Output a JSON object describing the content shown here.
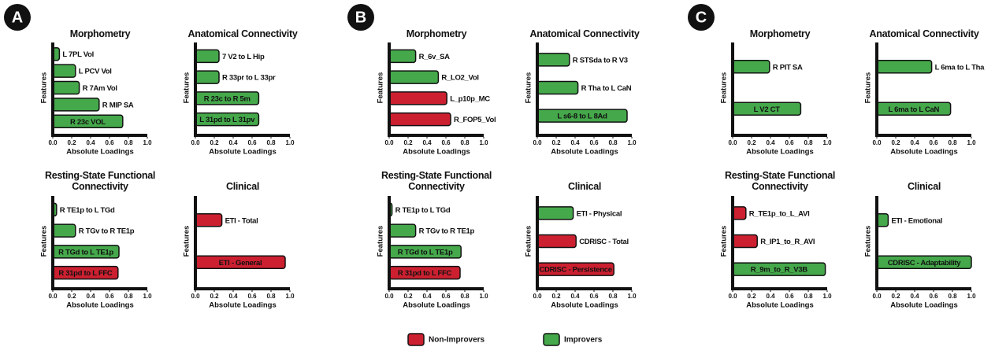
{
  "panels": [
    "A",
    "B",
    "C"
  ],
  "legend": [
    {
      "name": "Non-Improvers",
      "color": "#cc2030"
    },
    {
      "name": "Improvers",
      "color": "#45a84b"
    }
  ],
  "chart_data": [
    {
      "type": "bar",
      "title": "Morphometry",
      "xlabel": "Absolute Loadings",
      "ylabel": "Features",
      "categories": [
        "L 7PL Vol",
        "L PCV Vol",
        "R 7Am Vol",
        "R MIP SA",
        "R 23c VOL"
      ],
      "values": [
        0.07,
        0.24,
        0.28,
        0.49,
        0.74
      ],
      "colors": [
        "#45a84b",
        "#45a84b",
        "#45a84b",
        "#45a84b",
        "#45a84b"
      ],
      "xlim": [
        0,
        1
      ],
      "xticks": [
        {
          "value": 0,
          "label": "0.0"
        },
        0.2,
        0.4,
        0.6,
        0.8,
        {
          "value": 1,
          "label": "1.0"
        }
      ]
    },
    {
      "type": "bar",
      "title": "Anatomical Connectivity",
      "xlabel": "Absolute Loadings",
      "ylabel": "Features",
      "categories": [
        "7 V2 to L Hip",
        "R 33pr to L 33pr",
        "R 23c to R 5m",
        "L 31pd to L 31pv"
      ],
      "values": [
        0.25,
        0.25,
        0.67,
        0.67
      ],
      "colors": [
        "#45a84b",
        "#45a84b",
        "#45a84b",
        "#45a84b"
      ],
      "xlim": [
        0,
        1
      ],
      "xticks": [
        {
          "value": 0,
          "label": "0.0"
        },
        0.2,
        0.4,
        0.6,
        0.8,
        {
          "value": 1,
          "label": "1.0"
        }
      ]
    },
    {
      "type": "bar",
      "title": "Resting-State Functional Connectivity",
      "xlabel": "Absolute Loadings",
      "ylabel": "Features",
      "categories": [
        "R TE1p to L TGd",
        "R TGv to R TE1p",
        "R TGd to L TE1p",
        "R 31pd to L FFC"
      ],
      "values": [
        0.04,
        0.24,
        0.7,
        0.69
      ],
      "colors": [
        "#45a84b",
        "#45a84b",
        "#45a84b",
        "#cc2030"
      ],
      "xlim": [
        0,
        1
      ],
      "xticks": [
        {
          "value": 0,
          "label": "0.0"
        },
        0.2,
        0.4,
        0.6,
        0.8,
        {
          "value": 1,
          "label": "1.0"
        }
      ]
    },
    {
      "type": "bar",
      "title": "Clinical",
      "xlabel": "Absolute Loadings",
      "ylabel": "Features",
      "categories": [
        "ETI - Total",
        "ETI - General"
      ],
      "values": [
        0.28,
        0.95
      ],
      "colors": [
        "#cc2030",
        "#cc2030"
      ],
      "xlim": [
        0,
        1
      ],
      "xticks": [
        {
          "value": 0,
          "label": "0.0"
        },
        0.2,
        0.4,
        0.6,
        0.8,
        {
          "value": 1,
          "label": "1.0"
        }
      ]
    },
    {
      "type": "bar",
      "title": "Morphometry",
      "xlabel": "Absolute Loadings",
      "ylabel": "Features",
      "categories": [
        "R_6v_SA",
        "R_LO2_Vol",
        "L_p10p_MC",
        "R_FOP5_Vol"
      ],
      "values": [
        0.28,
        0.52,
        0.61,
        0.65
      ],
      "colors": [
        "#45a84b",
        "#45a84b",
        "#cc2030",
        "#cc2030"
      ],
      "xlim": [
        0,
        1
      ],
      "xticks": [
        {
          "value": 0,
          "label": "0.0"
        },
        0.2,
        0.4,
        0.6,
        0.8,
        {
          "value": 1,
          "label": "1.0"
        }
      ]
    },
    {
      "type": "bar",
      "title": "Anatomical Connectivity",
      "xlabel": "Absolute Loadings",
      "ylabel": "Features",
      "categories": [
        "R STSda to R V3",
        "R Tha to L CaN",
        "L s6-8 to L 8Ad"
      ],
      "values": [
        0.34,
        0.43,
        0.95
      ],
      "colors": [
        "#45a84b",
        "#45a84b",
        "#45a84b"
      ],
      "xlim": [
        0,
        1
      ],
      "xticks": [
        {
          "value": 0,
          "label": "0.0"
        },
        0.2,
        0.4,
        0.6,
        0.8,
        {
          "value": 1,
          "label": "1.0"
        }
      ]
    },
    {
      "type": "bar",
      "title": "Resting-State Functional Connectivity",
      "xlabel": "Absolute Loadings",
      "ylabel": "Features",
      "categories": [
        "R TE1p to L TGd",
        "R TGv to R TE1p",
        "R TGd to L TE1p",
        "R 31pd to L FFC"
      ],
      "values": [
        0.03,
        0.28,
        0.76,
        0.75
      ],
      "colors": [
        "#45a84b",
        "#45a84b",
        "#45a84b",
        "#cc2030"
      ],
      "xlim": [
        0,
        1
      ],
      "xticks": [
        {
          "value": 0,
          "label": "0.0"
        },
        0.2,
        0.4,
        0.6,
        0.8,
        {
          "value": 1,
          "label": "1.0"
        }
      ]
    },
    {
      "type": "bar",
      "title": "Clinical",
      "xlabel": "Absolute Loadings",
      "ylabel": "Features",
      "categories": [
        "ETI - Physical",
        "CDRISC - Total",
        "CDRISC - Persistence"
      ],
      "values": [
        0.38,
        0.41,
        0.81
      ],
      "colors": [
        "#45a84b",
        "#cc2030",
        "#cc2030"
      ],
      "xlim": [
        0,
        1
      ],
      "xticks": [
        {
          "value": 0,
          "label": "0.0"
        },
        0.2,
        0.4,
        0.6,
        0.8,
        {
          "value": 1,
          "label": "1.0"
        }
      ]
    },
    {
      "type": "bar",
      "title": "Morphometry",
      "xlabel": "Absolute Loadings",
      "ylabel": "Features",
      "categories": [
        "R PIT SA",
        "L V2 CT"
      ],
      "values": [
        0.39,
        0.72
      ],
      "colors": [
        "#45a84b",
        "#45a84b"
      ],
      "xlim": [
        0,
        1
      ],
      "xticks": [
        {
          "value": 0,
          "label": "0.0"
        },
        0.2,
        0.4,
        0.6,
        0.8,
        {
          "value": 1,
          "label": "1.0"
        }
      ]
    },
    {
      "type": "bar",
      "title": "Anatomical Connectivity",
      "xlabel": "Absolute Loadings",
      "ylabel": "Features",
      "categories": [
        "L 6ma to L Tha",
        "L 6ma to L CaN"
      ],
      "values": [
        0.58,
        0.78
      ],
      "colors": [
        "#45a84b",
        "#45a84b"
      ],
      "xlim": [
        0,
        1
      ],
      "xticks": [
        {
          "value": 0,
          "label": "0.0"
        },
        0.2,
        0.4,
        0.6,
        0.8,
        {
          "value": 1,
          "label": "1.0"
        }
      ]
    },
    {
      "type": "bar",
      "title": "Resting-State Functional Connectivity",
      "xlabel": "Absolute Loadings",
      "ylabel": "Features",
      "categories": [
        "R_TE1p_to_L_AVI",
        "R_IP1_to_R_AVI",
        "R_9m_to_R_V3B"
      ],
      "values": [
        0.14,
        0.26,
        0.98
      ],
      "colors": [
        "#cc2030",
        "#cc2030",
        "#45a84b"
      ],
      "xlim": [
        0,
        1
      ],
      "xticks": [
        {
          "value": 0,
          "label": "0.0"
        },
        0.2,
        0.4,
        0.6,
        0.8,
        {
          "value": 1,
          "label": "1.0"
        }
      ]
    },
    {
      "type": "bar",
      "title": "Clinical",
      "xlabel": "Absolute Loadings",
      "ylabel": "Features",
      "categories": [
        "ETI - Emotional",
        "CDRISC - Adaptability"
      ],
      "values": [
        0.12,
        1.0
      ],
      "colors": [
        "#45a84b",
        "#45a84b"
      ],
      "xlim": [
        0,
        1
      ],
      "xticks": [
        {
          "value": 0,
          "label": "0.0"
        },
        0.2,
        0.4,
        0.6,
        0.8,
        {
          "value": 1,
          "label": "1.0"
        }
      ]
    }
  ]
}
